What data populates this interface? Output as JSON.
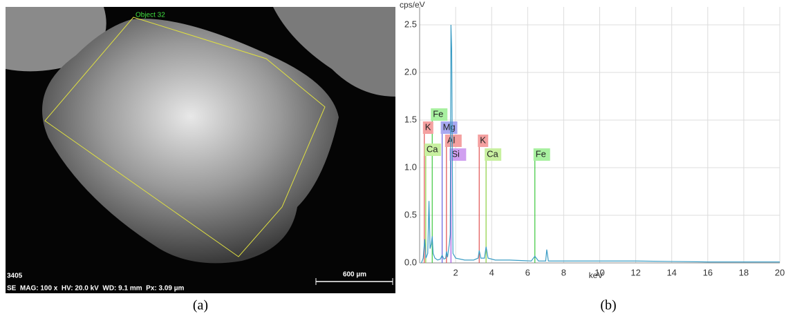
{
  "sem_image": {
    "object_label": "Object 32",
    "image_id": "3405",
    "info": "SE  MAG: 100 x  HV: 20.0 kV  WD: 9.1 mm  Px: 3.09 µm",
    "scale_bar": "600 µm",
    "caption": "(a)"
  },
  "chart_data": {
    "type": "line",
    "caption": "(b)",
    "y_label": "cps/eV",
    "x_label": "keV",
    "x": [
      0.1,
      0.2,
      0.28,
      0.35,
      0.45,
      0.52,
      0.58,
      0.65,
      0.7,
      0.75,
      0.85,
      1.0,
      1.15,
      1.25,
      1.35,
      1.45,
      1.49,
      1.55,
      1.65,
      1.7,
      1.74,
      1.78,
      1.85,
      2.0,
      2.5,
      3.0,
      3.25,
      3.31,
      3.4,
      3.6,
      3.69,
      3.8,
      4.2,
      5,
      6.2,
      6.4,
      6.6,
      7.0,
      7.06,
      7.15,
      8,
      10,
      12,
      14,
      16,
      18,
      20
    ],
    "series": [
      {
        "color": "#3a9cc4",
        "values": [
          0,
          0.05,
          0.25,
          0.05,
          0.1,
          0.65,
          0.15,
          0.2,
          0.28,
          0.1,
          0.05,
          0.03,
          0.04,
          0.08,
          0.04,
          0.05,
          0.12,
          0.06,
          0.2,
          0.3,
          2.5,
          2.25,
          0.1,
          0.05,
          0.03,
          0.03,
          0.05,
          0.13,
          0.05,
          0.05,
          0.17,
          0.05,
          0.03,
          0.03,
          0.02,
          0.07,
          0.02,
          0.02,
          0.14,
          0.02,
          0.02,
          0.02,
          0.02,
          0.015,
          0.01,
          0.01,
          0.01
        ]
      }
    ],
    "elements": [
      {
        "label": "Fe",
        "energy": 0.7,
        "color": "#3cc83c",
        "bg": "#a8f0a0"
      },
      {
        "label": "K",
        "energy": 0.26,
        "color": "#e05050",
        "bg": "#f4a0a0"
      },
      {
        "label": "Mg",
        "energy": 1.25,
        "color": "#6060e0",
        "bg": "#a8a8f0"
      },
      {
        "label": "Al",
        "energy": 1.49,
        "color": "#e05050",
        "bg": "#f4a0a0"
      },
      {
        "label": "Ca",
        "energy": 0.34,
        "color": "#8cd040",
        "bg": "#c8f0a0"
      },
      {
        "label": "Si",
        "energy": 1.74,
        "color": "#a050e0",
        "bg": "#d0a0f0"
      },
      {
        "label": "K",
        "energy": 3.31,
        "color": "#e05050",
        "bg": "#f4a0a0"
      },
      {
        "label": "Ca",
        "energy": 3.69,
        "color": "#8cd040",
        "bg": "#c8f0a0"
      },
      {
        "label": "Fe",
        "energy": 6.4,
        "color": "#3cc83c",
        "bg": "#a8f0a0"
      }
    ],
    "xlim": [
      0,
      20
    ],
    "ylim": [
      0,
      2.5
    ],
    "xticks": [
      2,
      4,
      6,
      8,
      10,
      12,
      14,
      16,
      18,
      20
    ],
    "yticks": [
      {
        "value": 0,
        "label": "0.0"
      },
      {
        "value": 0.5,
        "label": "0.5"
      },
      {
        "value": 1,
        "label": "1.0"
      },
      {
        "value": 1.5,
        "label": "1.5"
      },
      {
        "value": 2,
        "label": "2.0"
      },
      {
        "value": 2.5,
        "label": "2.5"
      }
    ],
    "grid": true
  }
}
